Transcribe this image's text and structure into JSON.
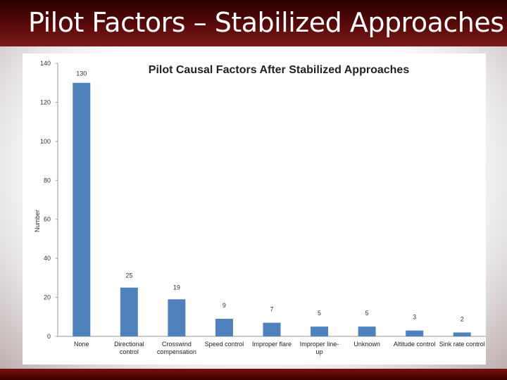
{
  "slide": {
    "title": "Pilot Factors – Stabilized Approaches"
  },
  "chart_data": {
    "type": "bar",
    "title": "Pilot Causal Factors After Stabilized Approaches",
    "xlabel": "",
    "ylabel": "Number",
    "ylim": [
      0,
      140
    ],
    "yticks": [
      0,
      20,
      40,
      60,
      80,
      100,
      120,
      140
    ],
    "ytick_labels": [
      "0",
      "20",
      "40",
      "60",
      "80",
      "100",
      "120",
      "140"
    ],
    "grid": false,
    "categories": [
      [
        "None"
      ],
      [
        "Directional",
        "control"
      ],
      [
        "Crosswind",
        "compensation"
      ],
      [
        "Speed control"
      ],
      [
        "Improper flare"
      ],
      [
        "Improper line-",
        "up"
      ],
      [
        "Unknown"
      ],
      [
        "Altitude control"
      ],
      [
        "Sink rate control"
      ]
    ],
    "values": [
      130,
      25,
      19,
      9,
      7,
      5,
      5,
      3,
      2
    ],
    "value_labels": [
      "130",
      "25",
      "19",
      "9",
      "7",
      "5",
      "5",
      "3",
      "2"
    ],
    "color": "#4f81bd"
  }
}
